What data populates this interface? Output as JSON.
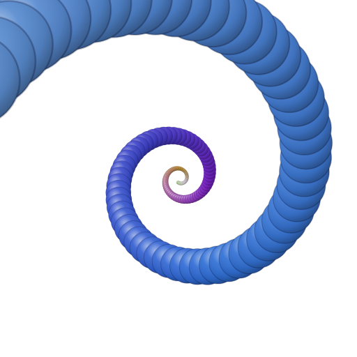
{
  "artwork": {
    "kind": "spiral-of-beads",
    "palette": {
      "outer": "#5a8ccf",
      "outer_mid": "#2f6fd6",
      "indigo": "#3f3fc8",
      "violet": "#7a1fc7",
      "mauve": "#b06aa0",
      "gold": "#c99a32",
      "pale": "#e3d6e6",
      "core": "#a6d27a"
    }
  }
}
